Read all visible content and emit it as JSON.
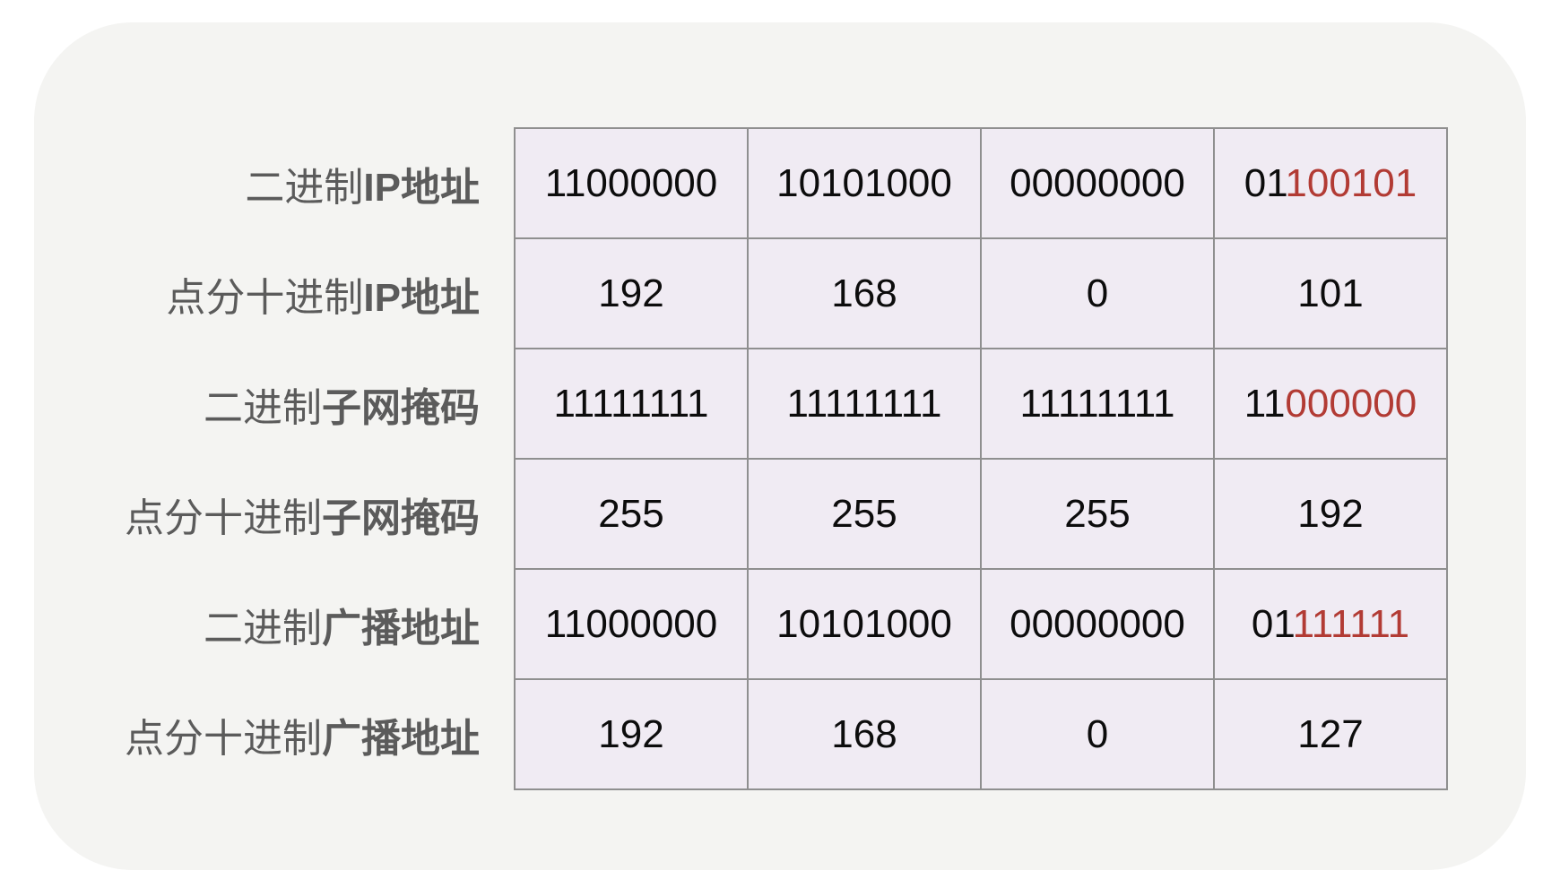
{
  "colors": {
    "card_bg": "#f4f4f2",
    "cell_bg": "#f0ebf3",
    "grid_border": "#8f8f8f",
    "label_color": "#5b5b5b",
    "value_color": "#0c0c0c",
    "accent_red": "#b23b34"
  },
  "table": {
    "rows": [
      {
        "name": "binary-ip-address",
        "label_prefix": "二进制",
        "label_bold": "IP地址",
        "cells": [
          {
            "text": "11000000",
            "red": ""
          },
          {
            "text": "10101000",
            "red": ""
          },
          {
            "text": "00000000",
            "red": ""
          },
          {
            "text": "01",
            "red": "100101"
          }
        ]
      },
      {
        "name": "dotted-decimal-ip-address",
        "label_prefix": "点分十进制",
        "label_bold": "IP地址",
        "cells": [
          {
            "text": "192",
            "red": ""
          },
          {
            "text": "168",
            "red": ""
          },
          {
            "text": "0",
            "red": ""
          },
          {
            "text": "101",
            "red": ""
          }
        ]
      },
      {
        "name": "binary-subnet-mask",
        "label_prefix": "二进制",
        "label_bold": "子网掩码",
        "cells": [
          {
            "text": "11111111",
            "red": ""
          },
          {
            "text": "11111111",
            "red": ""
          },
          {
            "text": "11111111",
            "red": ""
          },
          {
            "text": "11",
            "red": "000000"
          }
        ]
      },
      {
        "name": "dotted-decimal-subnet-mask",
        "label_prefix": "点分十进制",
        "label_bold": "子网掩码",
        "cells": [
          {
            "text": "255",
            "red": ""
          },
          {
            "text": "255",
            "red": ""
          },
          {
            "text": "255",
            "red": ""
          },
          {
            "text": "192",
            "red": ""
          }
        ]
      },
      {
        "name": "binary-broadcast-address",
        "label_prefix": "二进制",
        "label_bold": "广播地址",
        "cells": [
          {
            "text": "11000000",
            "red": ""
          },
          {
            "text": "10101000",
            "red": ""
          },
          {
            "text": "00000000",
            "red": ""
          },
          {
            "text": "01",
            "red": "111111"
          }
        ]
      },
      {
        "name": "dotted-decimal-broadcast-address",
        "label_prefix": "点分十进制",
        "label_bold": "广播地址",
        "cells": [
          {
            "text": "192",
            "red": ""
          },
          {
            "text": "168",
            "red": ""
          },
          {
            "text": "0",
            "red": ""
          },
          {
            "text": "127",
            "red": ""
          }
        ]
      }
    ]
  }
}
